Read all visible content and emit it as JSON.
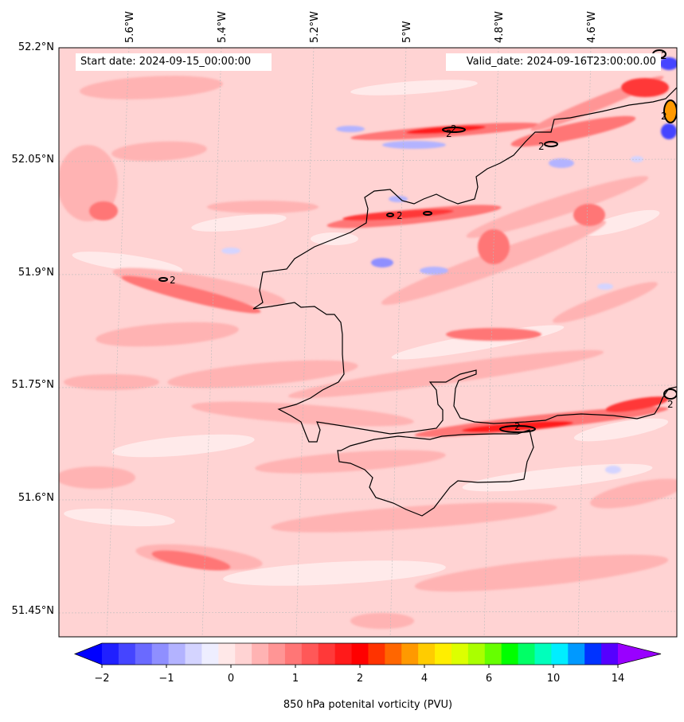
{
  "header": {
    "start_date": "Start date: 2024-09-15_00:00:00",
    "valid_date": "Valid_date: 2024-09-16T23:00:00.00"
  },
  "axes": {
    "lat_ticks": [
      "52.2°N",
      "52.05°N",
      "51.9°N",
      "51.75°N",
      "51.6°N",
      "51.45°N"
    ],
    "lon_ticks": [
      "5.6°W",
      "5.4°W",
      "5.2°W",
      "5°W",
      "4.8°W",
      "4.6°W"
    ],
    "lat_range": [
      51.42,
      52.2
    ],
    "lon_range": [
      -5.72,
      -4.4
    ]
  },
  "colorbar": {
    "label": "850 hPa potenital vorticity (PVU)",
    "tick_labels": [
      "−2",
      "−1",
      "0",
      "1",
      "2",
      "4",
      "6",
      "10",
      "14"
    ],
    "levels": [
      "-2",
      "-1.75",
      "-1.5",
      "-1.25",
      "-1",
      "-0.75",
      "-0.5",
      "-0.25",
      "0",
      "0.25",
      "0.5",
      "0.75",
      "1",
      "1.25",
      "1.5",
      "1.75",
      "2",
      "2.5",
      "3",
      "3.5",
      "4",
      "4.5",
      "5",
      "5.5",
      "6",
      "7",
      "8",
      "9",
      "10",
      "11",
      "12",
      "13",
      "14"
    ],
    "colors": [
      "#0000ff",
      "#2020ff",
      "#4545ff",
      "#6a6aff",
      "#8f8fff",
      "#b3b3ff",
      "#d4d4ff",
      "#eeeeff",
      "#ffe8e8",
      "#ffd3d3",
      "#ffb3b3",
      "#ff9595",
      "#ff7676",
      "#ff5858",
      "#ff3939",
      "#ff1a1a",
      "#ff0000",
      "#ff3300",
      "#ff6600",
      "#ff9900",
      "#ffcc00",
      "#ffee00",
      "#ddff00",
      "#aaff00",
      "#66ff00",
      "#00ff00",
      "#00ff66",
      "#00ffbb",
      "#00eeff",
      "#0099ff",
      "#0033ff",
      "#5500ff",
      "#9900ff"
    ],
    "extend": "both"
  },
  "contour": {
    "level_label": "2",
    "labels": [
      "2",
      "2",
      "2",
      "2",
      "2",
      "2",
      "2",
      "2",
      "2"
    ]
  },
  "field": {
    "background_color": "#ffd3d3",
    "contour_color": "#000000",
    "coast_color": "#000000"
  }
}
